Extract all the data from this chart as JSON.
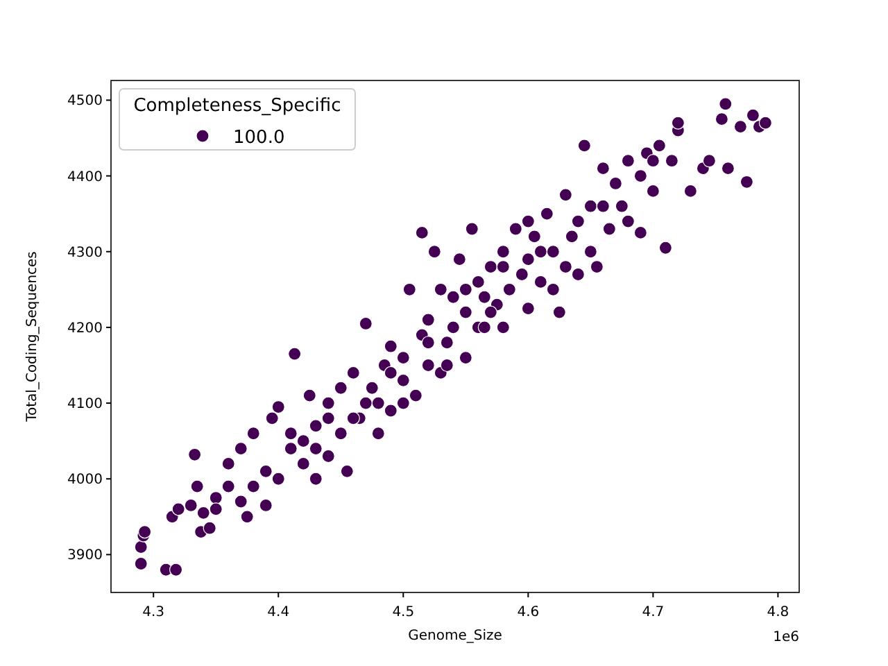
{
  "chart_data": {
    "type": "scatter",
    "xlabel": "Genome_Size",
    "ylabel": "Total_Coding_Sequences",
    "legend_title": "Completeness_Specific",
    "legend": "top left",
    "marker": "circle",
    "grid": false,
    "annotations": [
      "1e6"
    ],
    "xlim": [
      4.266,
      4.817
    ],
    "xticks": [
      4.3,
      4.4,
      4.5,
      4.6,
      4.7,
      4.8
    ],
    "ylim": [
      3850,
      4526
    ],
    "yticks": [
      3900,
      4000,
      4100,
      4200,
      4300,
      4400,
      4500
    ],
    "series": [
      {
        "name": "100.0",
        "color": "#440154",
        "x": [
          4.29,
          4.29,
          4.292,
          4.293,
          4.31,
          4.318,
          4.315,
          4.32,
          4.33,
          4.335,
          4.333,
          4.338,
          4.34,
          4.35,
          4.36,
          4.36,
          4.37,
          4.375,
          4.38,
          4.39,
          4.38,
          4.395,
          4.4,
          4.4,
          4.41,
          4.413,
          4.42,
          4.425,
          4.43,
          4.43,
          4.44,
          4.44,
          4.45,
          4.45,
          4.455,
          4.46,
          4.465,
          4.47,
          4.475,
          4.48,
          4.48,
          4.485,
          4.49,
          4.49,
          4.5,
          4.5,
          4.505,
          4.51,
          4.515,
          4.515,
          4.52,
          4.52,
          4.525,
          4.53,
          4.53,
          4.535,
          4.54,
          4.54,
          4.545,
          4.55,
          4.55,
          4.555,
          4.56,
          4.56,
          4.565,
          4.57,
          4.575,
          4.58,
          4.58,
          4.585,
          4.59,
          4.595,
          4.6,
          4.6,
          4.605,
          4.61,
          4.615,
          4.62,
          4.625,
          4.63,
          4.63,
          4.635,
          4.64,
          4.645,
          4.65,
          4.65,
          4.655,
          4.66,
          4.665,
          4.67,
          4.675,
          4.68,
          4.68,
          4.69,
          4.69,
          4.695,
          4.7,
          4.705,
          4.71,
          4.715,
          4.72,
          4.72,
          4.73,
          4.74,
          4.745,
          4.755,
          4.758,
          4.76,
          4.77,
          4.775,
          4.78,
          4.785,
          4.79,
          4.42,
          4.43,
          4.46,
          4.47,
          4.5,
          4.52,
          4.55,
          4.57,
          4.61,
          4.6,
          4.58,
          4.66,
          4.7,
          4.35,
          4.345,
          4.37,
          4.39,
          4.41,
          4.44,
          4.49,
          4.535,
          4.565,
          4.62,
          4.64
        ],
        "values": [
          3888,
          3910,
          3925,
          3930,
          3880,
          3880,
          3950,
          3960,
          3965,
          3990,
          4032,
          3930,
          3955,
          3975,
          3990,
          4020,
          4040,
          3950,
          4060,
          3965,
          3990,
          4080,
          4000,
          4095,
          4040,
          4165,
          4050,
          4110,
          4000,
          4070,
          4030,
          4100,
          4060,
          4120,
          4010,
          4140,
          4080,
          4205,
          4120,
          4060,
          4100,
          4150,
          4090,
          4175,
          4130,
          4160,
          4250,
          4110,
          4190,
          4325,
          4150,
          4210,
          4300,
          4140,
          4250,
          4180,
          4200,
          4240,
          4290,
          4160,
          4220,
          4330,
          4200,
          4260,
          4240,
          4280,
          4230,
          4200,
          4300,
          4250,
          4330,
          4270,
          4225,
          4290,
          4320,
          4260,
          4350,
          4300,
          4220,
          4375,
          4280,
          4320,
          4340,
          4440,
          4360,
          4300,
          4280,
          4410,
          4330,
          4390,
          4360,
          4420,
          4340,
          4400,
          4325,
          4430,
          4380,
          4440,
          4305,
          4420,
          4460,
          4470,
          4380,
          4410,
          4420,
          4475,
          4495,
          4410,
          4465,
          4392,
          4480,
          4465,
          4470,
          4020,
          4040,
          4080,
          4100,
          4100,
          4180,
          4250,
          4220,
          4300,
          4340,
          4280,
          4360,
          4420,
          3960,
          3935,
          3970,
          4010,
          4060,
          4080,
          4140,
          4150,
          4200,
          4250,
          4270
        ]
      }
    ]
  }
}
